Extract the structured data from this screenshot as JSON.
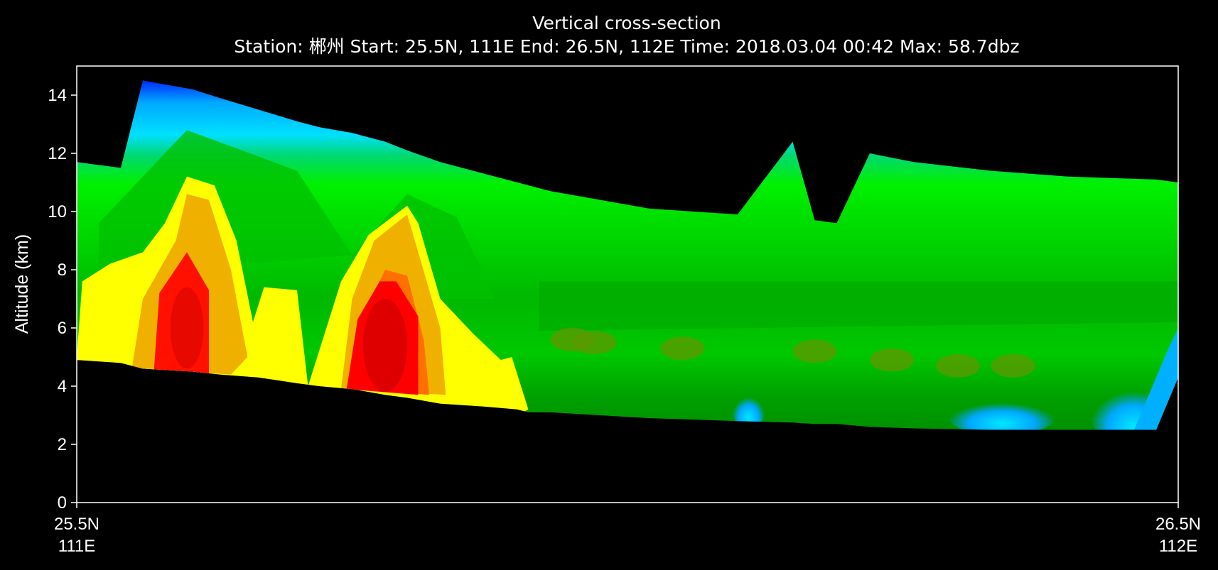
{
  "chart_data": {
    "type": "heatmap",
    "title": "Vertical cross-section",
    "subtitle": "Station: 郴州 Start: 25.5N, 111E End: 26.5N, 112E Time: 2018.03.04 00:42 Max: 58.7dbz",
    "ylabel": "Altitude (km)",
    "xlabel": "",
    "ylim": [
      0,
      15
    ],
    "yticks": [
      0,
      2,
      4,
      6,
      8,
      10,
      12,
      14
    ],
    "x_start_label": [
      "25.5N",
      "111E"
    ],
    "x_end_label": [
      "26.5N",
      "112E"
    ],
    "grid": false,
    "x": [
      0,
      0.04,
      0.06,
      0.105,
      0.13,
      0.165,
      0.2,
      0.22,
      0.25,
      0.28,
      0.3,
      0.33,
      0.37,
      0.4,
      0.41,
      0.43,
      0.52,
      0.6,
      0.65,
      0.67,
      0.69,
      0.72,
      0.76,
      0.83,
      0.9,
      0.98,
      1
    ],
    "echo_top_km": [
      11.7,
      11.5,
      14.5,
      14.2,
      13.9,
      13.5,
      13.1,
      12.9,
      12.7,
      12.4,
      12.1,
      11.7,
      11.3,
      11.0,
      10.9,
      10.7,
      10.1,
      9.9,
      12.4,
      9.7,
      9.6,
      12.0,
      11.7,
      11.4,
      11.2,
      11.1,
      11.0
    ],
    "echo_base_km": [
      4.9,
      4.8,
      4.6,
      4.5,
      4.4,
      4.3,
      4.1,
      4.0,
      3.9,
      3.7,
      3.6,
      3.4,
      3.3,
      3.2,
      3.1,
      3.1,
      2.9,
      2.8,
      2.75,
      2.7,
      2.7,
      2.6,
      2.55,
      2.5,
      2.5,
      2.5,
      4.3
    ],
    "reflectivity_max_dbz": 58.7,
    "colormap": [
      "#0020ff",
      "#00a8ff",
      "#00e8ff",
      "#00ff00",
      "#00a000",
      "#4a9000",
      "#b8d000",
      "#ffff00",
      "#f0b400",
      "#ff7800",
      "#ff0000",
      "#c80000"
    ],
    "background": "#000000",
    "axes_color": "#ffffff"
  }
}
